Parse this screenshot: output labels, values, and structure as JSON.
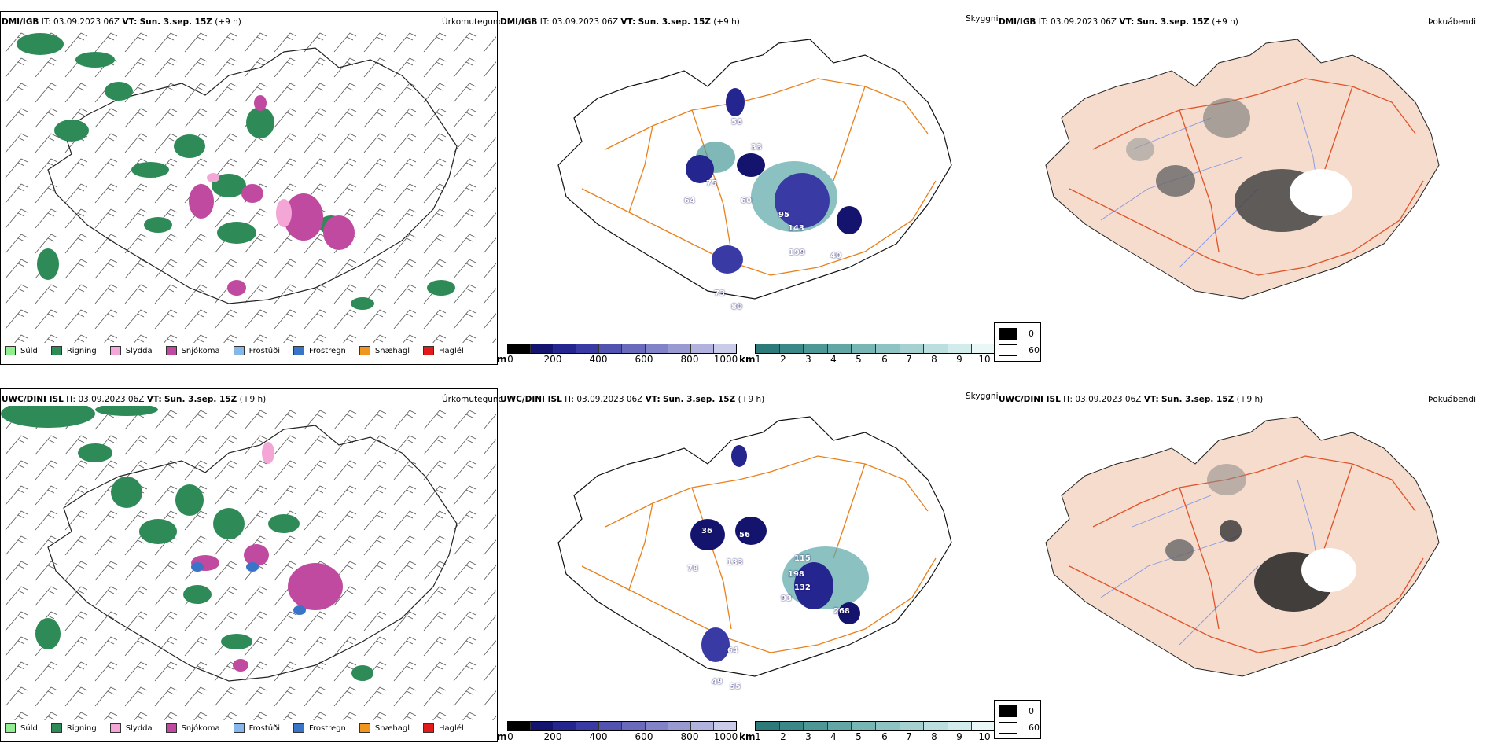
{
  "rows": [
    {
      "model": "DMI/IGB",
      "it_label": "IT:",
      "it_value": "03.09.2023 06Z",
      "vt_label": "VT:",
      "vt_value": "Sun. 3.sep. 15Z",
      "lead": "(+9 h)",
      "titles": {
        "precip": "Úrkomutegund",
        "visibility": "Skyggni",
        "fog": "Þokuábendi"
      },
      "visibility_labels": [
        "56",
        "33",
        "22",
        "75",
        "58",
        "60",
        "52",
        "64",
        "95",
        "143",
        "218",
        "199",
        "40",
        "36",
        "114",
        "65",
        "73",
        "80",
        "209"
      ]
    },
    {
      "model": "UWC/DINI ISL",
      "it_label": "IT:",
      "it_value": "03.09.2023 06Z",
      "vt_label": "VT:",
      "vt_value": "Sun. 3.sep. 15Z",
      "lead": "(+9 h)",
      "titles": {
        "precip": "Úrkomutegund",
        "visibility": "Skyggni",
        "fog": "Þokuábendi"
      },
      "visibility_labels": [
        "36",
        "56",
        "78",
        "133",
        "21",
        "115",
        "39",
        "198",
        "132",
        "93",
        "268",
        "64",
        "49",
        "55",
        "30",
        "10"
      ]
    }
  ],
  "precip_legend": [
    {
      "label": "Súld",
      "color": "#90ee90"
    },
    {
      "label": "Rigning",
      "color": "#2e8b57"
    },
    {
      "label": "Slydda",
      "color": "#f4a6d7"
    },
    {
      "label": "Snjókoma",
      "color": "#c04aa0"
    },
    {
      "label": "Frostúði",
      "color": "#87b7ea"
    },
    {
      "label": "Frostregn",
      "color": "#3874c8"
    },
    {
      "label": "Snæhagl",
      "color": "#f0961e"
    },
    {
      "label": "Haglél",
      "color": "#e11b1b"
    }
  ],
  "visibility_scale_m": {
    "unit": "m",
    "ticks": [
      "0",
      "200",
      "400",
      "600",
      "800",
      "1000"
    ],
    "colors": [
      "#000000",
      "#14146e",
      "#252590",
      "#3a3aa5",
      "#5252b0",
      "#6a6abd",
      "#8282c8",
      "#9a9ad3",
      "#b2b2de",
      "#cacae9"
    ]
  },
  "visibility_scale_km": {
    "unit": "km",
    "ticks": [
      "1",
      "2",
      "3",
      "4",
      "5",
      "6",
      "7",
      "8",
      "9",
      "10"
    ],
    "colors": [
      "#2d7a7a",
      "#3b8888",
      "#4e9797",
      "#62a6a6",
      "#78b5b5",
      "#8ec3c3",
      "#a5d1d1",
      "#bbdfdf",
      "#d2ecec",
      "#e9f7f7"
    ]
  },
  "fog_legend": [
    {
      "label": "0",
      "color": "#000000"
    },
    {
      "label": "60",
      "color": "#ffffff"
    }
  ],
  "colors": {
    "rain": "#2e8b57",
    "snow": "#c04aa0",
    "sleet": "#f4a6d7",
    "frz": "#3874c8",
    "roads": "#e8801c",
    "land_fog": "#f5dccd",
    "fog_roads": "#e0532a",
    "rivers": "#7a8fe8"
  }
}
